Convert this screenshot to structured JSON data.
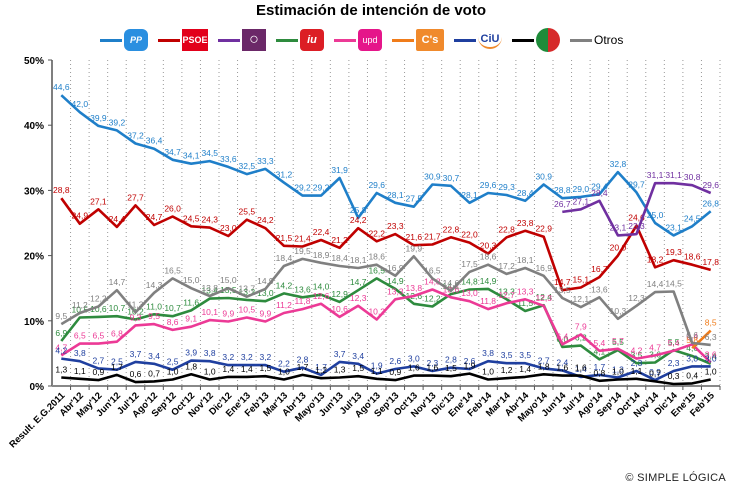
{
  "chart_data": {
    "type": "line",
    "title": "Estimación de intención de voto",
    "xlabel": "",
    "ylabel": "",
    "ylim": [
      0,
      50
    ],
    "yticks": [
      "0%",
      "10%",
      "20%",
      "30%",
      "40%",
      "50%"
    ],
    "grid": "vertical-dotted",
    "legend_position": "top",
    "categories": [
      "Result. E.G.2011",
      "Abr'12",
      "May'12",
      "Jun'12",
      "Jul'12",
      "Ago'12",
      "Sep'12",
      "Oct'12",
      "Nov'12",
      "Dic'12",
      "Ene'13",
      "Feb'13",
      "Mar'13",
      "Abr'13",
      "Mayo'13",
      "Jun'13",
      "Jul'13",
      "Ago'13",
      "Sep'13",
      "Oct'13",
      "Nov'13",
      "Dic'13",
      "Ene'14",
      "Feb'14",
      "Mar'14",
      "Abr'14",
      "Mayo'14",
      "Jun'14",
      "Jul'14",
      "Ago'14",
      "Sep'14",
      "Oct'14",
      "Nov'14",
      "Dic'14",
      "Ene'15",
      "Feb'15"
    ],
    "series": [
      {
        "name": "PP",
        "color": "#1f7fc9",
        "values": [
          44.6,
          42.0,
          39.9,
          39.2,
          37.2,
          36.4,
          34.7,
          34.1,
          34.5,
          33.6,
          32.5,
          33.3,
          31.2,
          29.2,
          29.2,
          31.9,
          25.8,
          29.6,
          28.1,
          27.5,
          30.9,
          30.7,
          28.1,
          29.6,
          29.3,
          28.4,
          30.9,
          28.8,
          29.0,
          29.4,
          32.8,
          29.7,
          25.0,
          23.1,
          24.5,
          26.8
        ]
      },
      {
        "name": "PSOE",
        "color": "#c00000",
        "values": [
          28.8,
          24.9,
          27.1,
          24.4,
          27.7,
          24.7,
          26.0,
          24.5,
          24.3,
          23.0,
          25.5,
          24.2,
          21.5,
          21.4,
          22.4,
          21.2,
          24.2,
          22.2,
          23.3,
          21.6,
          21.7,
          22.8,
          22.0,
          20.3,
          22.8,
          23.8,
          22.9,
          14.7,
          15.1,
          16.7,
          20.0,
          24.6,
          18.2,
          19.3,
          18.6,
          17.8
        ]
      },
      {
        "name": "Podemos",
        "color": "#7030a0",
        "values": [
          null,
          null,
          null,
          null,
          null,
          null,
          null,
          null,
          null,
          null,
          null,
          null,
          null,
          null,
          null,
          null,
          null,
          null,
          null,
          null,
          null,
          null,
          null,
          null,
          null,
          null,
          null,
          26.7,
          27.1,
          28.4,
          23.1,
          23.3,
          31.1,
          31.1,
          30.8,
          29.6
        ]
      },
      {
        "name": "IU",
        "color": "#2e8b3e",
        "values": [
          6.9,
          10.5,
          10.6,
          10.7,
          10.2,
          11.0,
          10.7,
          11.6,
          13.4,
          13.5,
          13.2,
          13.0,
          14.2,
          13.6,
          14.0,
          12.9,
          14.7,
          16.5,
          14.9,
          12.6,
          12.2,
          14.1,
          14.8,
          14.9,
          13.3,
          11.5,
          12.4,
          6.0,
          6.2,
          4.1,
          5.5,
          3.5,
          3.6,
          5.5,
          4.6,
          3.4
        ]
      },
      {
        "name": "UPyD",
        "color": "#ec3a96",
        "values": [
          4.7,
          6.5,
          6.5,
          6.8,
          9.3,
          9.5,
          8.6,
          9.1,
          10.1,
          9.9,
          10.5,
          9.9,
          11.2,
          11.8,
          12.6,
          10.6,
          12.3,
          10.2,
          13.3,
          13.8,
          14.8,
          13.6,
          13.0,
          11.8,
          12.7,
          13.3,
          12.3,
          6.4,
          7.9,
          5.4,
          5.7,
          4.2,
          4.7,
          5.4,
          6.4,
          3.6
        ]
      },
      {
        "name": "C's",
        "color": "#f07c1a",
        "values": [
          null,
          null,
          null,
          null,
          null,
          null,
          null,
          null,
          null,
          null,
          null,
          null,
          null,
          null,
          null,
          null,
          null,
          null,
          null,
          null,
          null,
          null,
          null,
          null,
          null,
          null,
          null,
          null,
          null,
          null,
          null,
          null,
          null,
          null,
          5.8,
          8.5
        ]
      },
      {
        "name": "CiU",
        "color": "#1f3f9f",
        "values": [
          4.2,
          3.8,
          2.7,
          2.5,
          3.7,
          3.4,
          2.5,
          3.9,
          3.8,
          3.2,
          3.2,
          3.2,
          2.2,
          2.8,
          1.7,
          3.7,
          3.4,
          1.9,
          2.6,
          3.0,
          2.3,
          2.8,
          2.6,
          3.8,
          3.5,
          3.5,
          2.7,
          2.4,
          1.4,
          1.7,
          1.3,
          2.3,
          0.9,
          2.3,
          3.0,
          3.0
        ]
      },
      {
        "name": "PNV",
        "color": "#000000",
        "values": [
          1.3,
          1.1,
          0.9,
          1.7,
          0.6,
          0.7,
          1.0,
          1.8,
          1.0,
          1.4,
          1.4,
          1.5,
          1.0,
          1.7,
          1.2,
          1.3,
          1.5,
          1.1,
          0.9,
          1.6,
          1.6,
          1.5,
          1.9,
          1.0,
          1.2,
          1.4,
          1.8,
          1.6,
          1.6,
          0.8,
          1.0,
          1.1,
          0.7,
          0.3,
          0.4,
          1.0
        ]
      },
      {
        "name": "Otros",
        "color": "#808080",
        "values": [
          9.5,
          11.2,
          12.2,
          14.7,
          11.3,
          14.3,
          16.5,
          15.0,
          13.8,
          15.0,
          13.7,
          14.9,
          18.4,
          19.5,
          18.9,
          18.4,
          18.1,
          18.6,
          16.9,
          19.9,
          16.5,
          14.6,
          17.5,
          18.6,
          17.2,
          18.1,
          16.9,
          13.5,
          12.1,
          13.6,
          10.3,
          12.3,
          14.4,
          14.5,
          6.6,
          6.3
        ]
      }
    ]
  },
  "legend": {
    "pp_badge": "PP",
    "psoe_badge": "PSOE",
    "podemos_badge": "○",
    "iu_badge": "iu",
    "upyd_badge": "upd",
    "cs_badge": "C's",
    "ciu_badge": "CiU",
    "pnv_badge": "",
    "otros_label": "Otros"
  },
  "credit": "© SIMPLE LÓGICA"
}
